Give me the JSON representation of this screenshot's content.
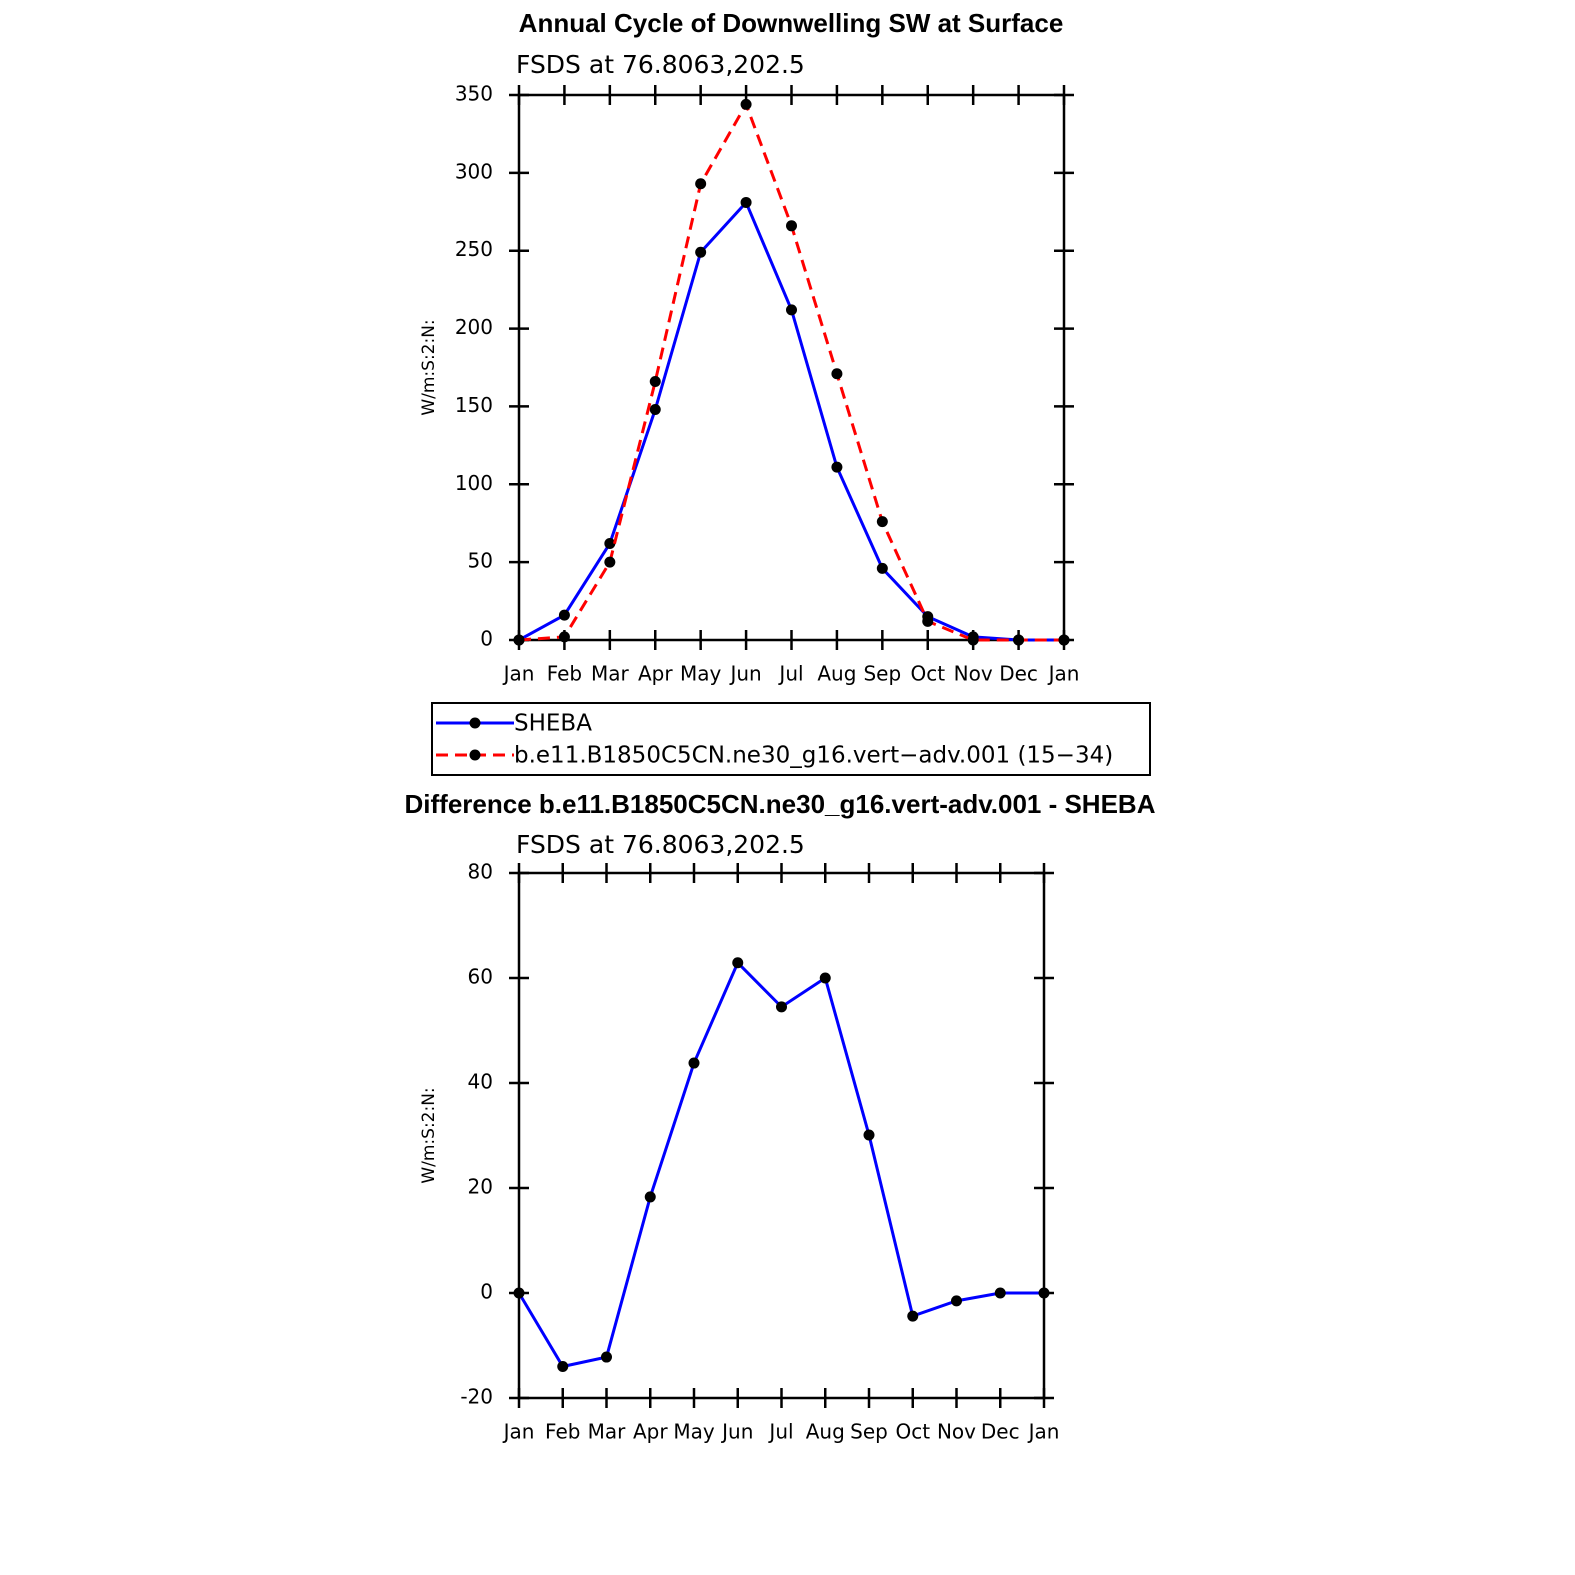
{
  "chart_data": [
    {
      "type": "line",
      "title": "Annual Cycle of Downwelling SW at Surface",
      "subtitle": "FSDS at 76.8063,202.5",
      "ylabel": "W/m:S:2:N:",
      "categories": [
        "Jan",
        "Feb",
        "Mar",
        "Apr",
        "May",
        "Jun",
        "Jul",
        "Aug",
        "Sep",
        "Oct",
        "Nov",
        "Dec",
        "Jan"
      ],
      "series": [
        {
          "name": "SHEBA",
          "color": "#0000ff",
          "dash": "solid",
          "values": [
            0,
            16,
            62,
            148,
            249,
            281,
            212,
            111,
            46,
            15,
            2,
            0,
            0
          ]
        },
        {
          "name": "b.e11.B1850C5CN.ne30_g16.vert−adv.001 (15−34)",
          "color": "#ff0000",
          "dash": "dashed",
          "values": [
            0,
            2,
            50,
            166,
            293,
            344,
            266,
            171,
            76,
            12,
            0,
            0,
            0
          ]
        }
      ],
      "ylim": [
        0,
        350
      ],
      "yticks": [
        0,
        50,
        100,
        150,
        200,
        250,
        300,
        350
      ],
      "legend": "below"
    },
    {
      "type": "line",
      "title": "Difference b.e11.B1850C5CN.ne30_g16.vert-adv.001 - SHEBA",
      "subtitle": "FSDS at 76.8063,202.5",
      "ylabel": "W/m:S:2:N:",
      "categories": [
        "Jan",
        "Feb",
        "Mar",
        "Apr",
        "May",
        "Jun",
        "Jul",
        "Aug",
        "Sep",
        "Oct",
        "Nov",
        "Dec",
        "Jan"
      ],
      "series": [
        {
          "color": "#0000ff",
          "dash": "solid",
          "values": [
            0,
            -14,
            -12.2,
            18.3,
            43.8,
            62.9,
            54.5,
            60,
            30.1,
            -4.4,
            -1.5,
            0,
            0
          ]
        }
      ],
      "ylim": [
        -20,
        80
      ],
      "yticks": [
        -20,
        0,
        20,
        40,
        60,
        80
      ]
    }
  ]
}
